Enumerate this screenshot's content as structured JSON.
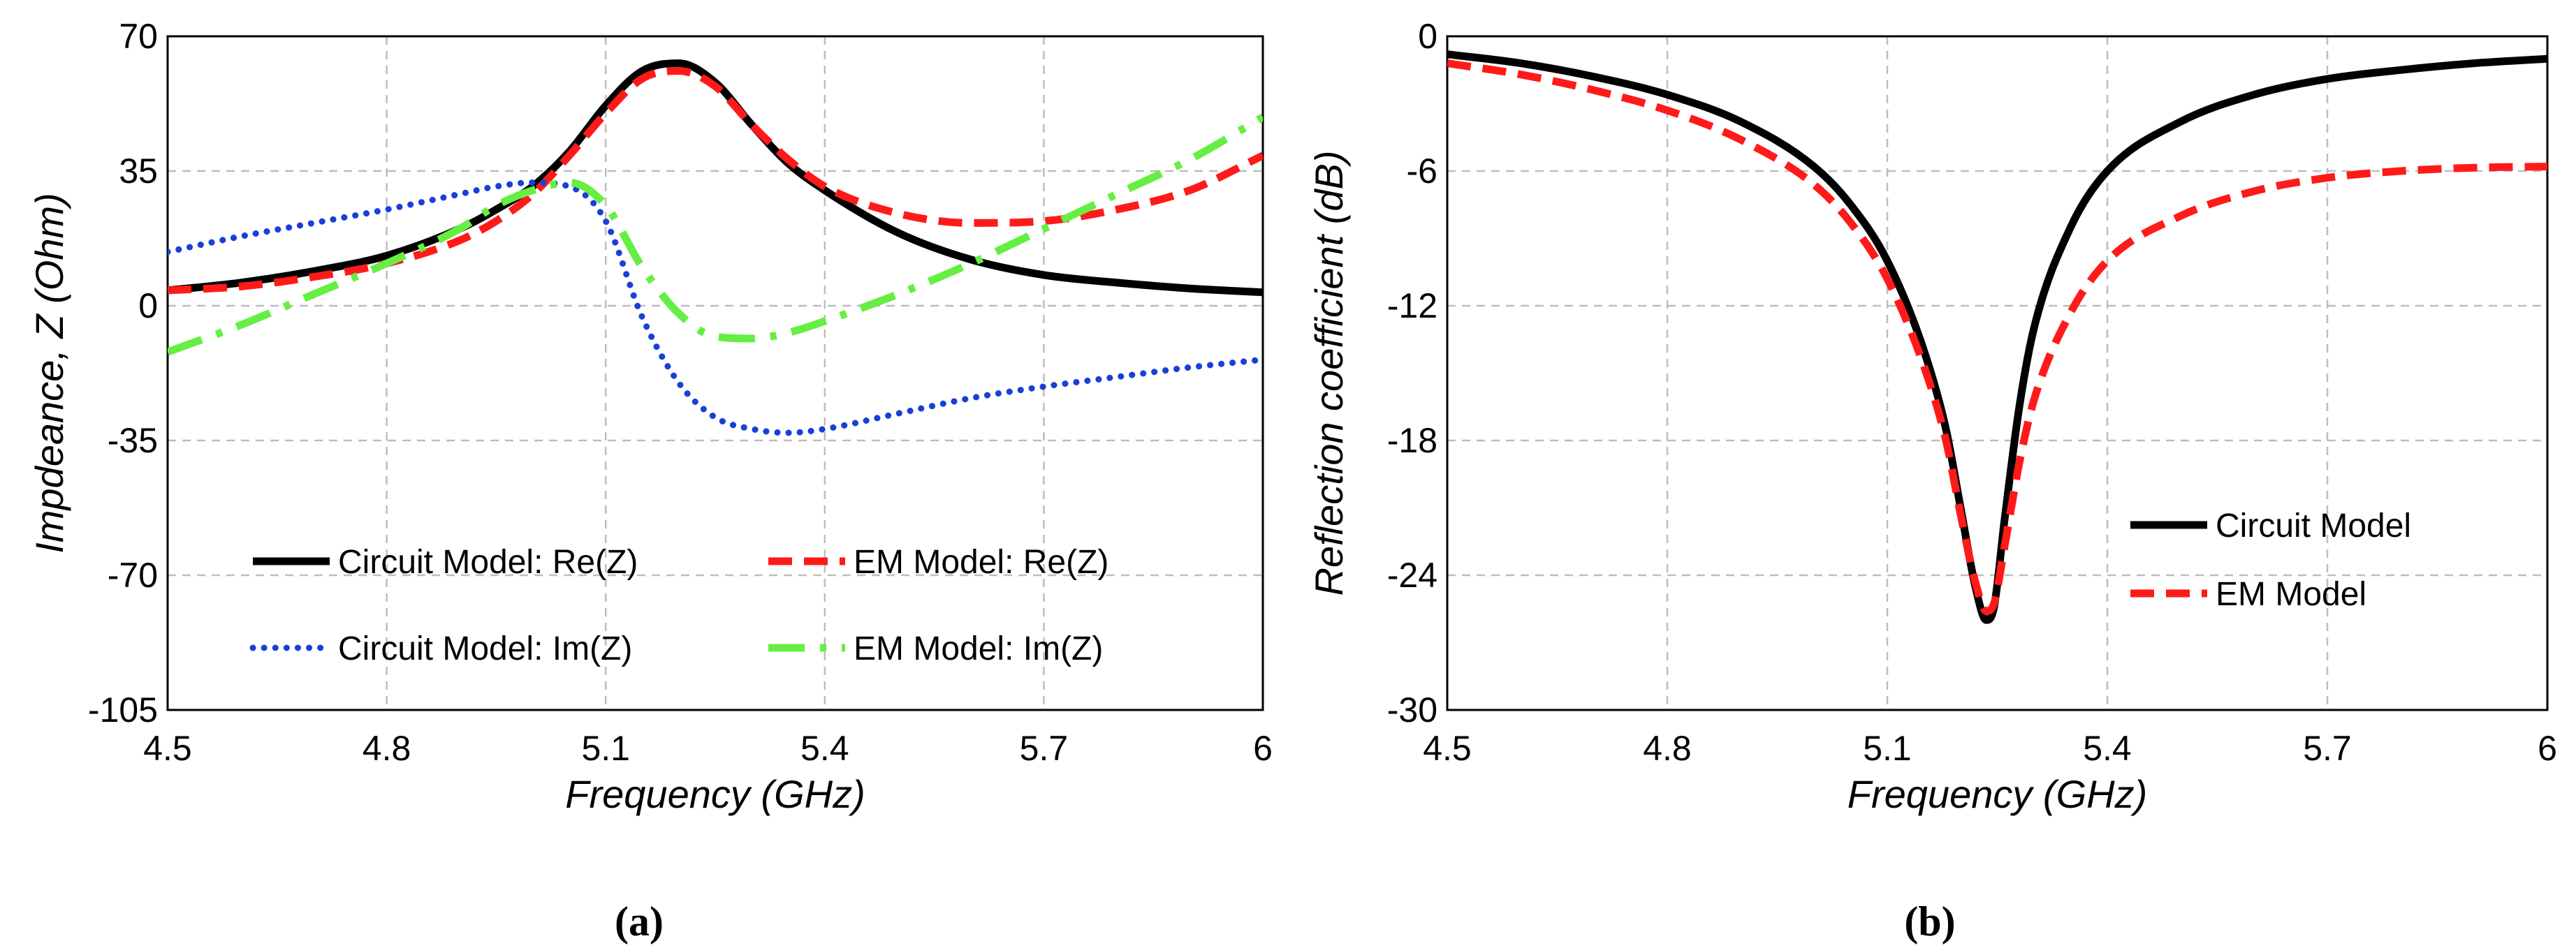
{
  "chart_data": [
    {
      "type": "line",
      "panel": "(a)",
      "xlabel": "Frequency (GHz)",
      "ylabel": "Impdeance, Z (Ohm)",
      "xlim": [
        4.5,
        6
      ],
      "ylim": [
        -105,
        70
      ],
      "xticks": [
        "4.5",
        "4.8",
        "5.1",
        "5.4",
        "5.7",
        "6"
      ],
      "yticks": [
        "70",
        "35",
        "0",
        "-35",
        "-70",
        "-105"
      ],
      "grid": true,
      "legend_position": "bottom-inside, two columns",
      "x": [
        4.5,
        4.6,
        4.7,
        4.8,
        4.9,
        4.95,
        5.0,
        5.05,
        5.1,
        5.15,
        5.2,
        5.25,
        5.3,
        5.35,
        5.4,
        5.5,
        5.6,
        5.7,
        5.8,
        5.9,
        6.0
      ],
      "series": [
        {
          "name": "Circuit Model: Re(Z)",
          "color": "#000000",
          "style": "solid",
          "values": [
            4,
            6,
            9,
            13,
            20,
            25,
            31,
            40,
            52,
            61,
            63,
            58,
            47,
            37,
            30,
            19,
            12,
            8,
            6,
            4.5,
            3.5
          ]
        },
        {
          "name": "EM Model: Re(Z)",
          "color": "#ff1a1a",
          "style": "dashed",
          "values": [
            4,
            5,
            7.5,
            11,
            17,
            22,
            29,
            39,
            50,
            59,
            61,
            57,
            47,
            38,
            31,
            24,
            21.5,
            22,
            25,
            30,
            39
          ]
        },
        {
          "name": "Circuit Model: Im(Z)",
          "color": "#1a3fd9",
          "style": "dotted",
          "values": [
            14,
            18,
            21.5,
            25,
            29,
            31,
            32,
            31,
            22,
            -3,
            -20,
            -29,
            -32,
            -33,
            -32,
            -28,
            -24,
            -21,
            -18.5,
            -16,
            -14
          ]
        },
        {
          "name": "EM Model: Im(Z)",
          "color": "#66ee44",
          "style": "dashdot",
          "values": [
            -12,
            -5,
            3,
            11,
            20,
            26,
            30,
            32,
            26,
            10,
            -2,
            -8,
            -8.5,
            -7,
            -4,
            3,
            11,
            20,
            29,
            38,
            49
          ]
        }
      ]
    },
    {
      "type": "line",
      "panel": "(b)",
      "xlabel": "Frequency (GHz)",
      "ylabel": "Reflection coefficient (dB)",
      "xlim": [
        4.5,
        6
      ],
      "ylim": [
        -30,
        0
      ],
      "xticks": [
        "4.5",
        "4.8",
        "5.1",
        "5.4",
        "5.7",
        "6"
      ],
      "yticks": [
        "0",
        "-6",
        "-12",
        "-18",
        "-24",
        "-30"
      ],
      "grid": true,
      "legend_position": "right-inside",
      "x": [
        4.5,
        4.6,
        4.7,
        4.8,
        4.9,
        5.0,
        5.05,
        5.1,
        5.15,
        5.18,
        5.2,
        5.22,
        5.235,
        5.245,
        5.26,
        5.28,
        5.3,
        5.35,
        5.4,
        5.5,
        5.6,
        5.7,
        5.8,
        5.9,
        6.0
      ],
      "series": [
        {
          "name": "Circuit Model",
          "color": "#000000",
          "style": "solid",
          "values": [
            -0.8,
            -1.2,
            -1.8,
            -2.6,
            -3.8,
            -5.8,
            -7.5,
            -10,
            -14,
            -17.5,
            -21,
            -24.5,
            -26,
            -25.5,
            -21.5,
            -16.5,
            -13,
            -8.5,
            -6,
            -3.8,
            -2.6,
            -1.9,
            -1.5,
            -1.2,
            -1.0
          ]
        },
        {
          "name": "EM Model",
          "color": "#ff1a1a",
          "style": "dashed",
          "values": [
            -1.2,
            -1.7,
            -2.4,
            -3.3,
            -4.6,
            -6.6,
            -8.3,
            -10.8,
            -14.7,
            -18,
            -21.3,
            -24.3,
            -25.6,
            -25.3,
            -22.7,
            -19,
            -16.2,
            -12.3,
            -10,
            -8,
            -6.9,
            -6.3,
            -6.0,
            -5.85,
            -5.8
          ]
        }
      ]
    }
  ],
  "captions": [
    "(a)",
    "(b)"
  ]
}
